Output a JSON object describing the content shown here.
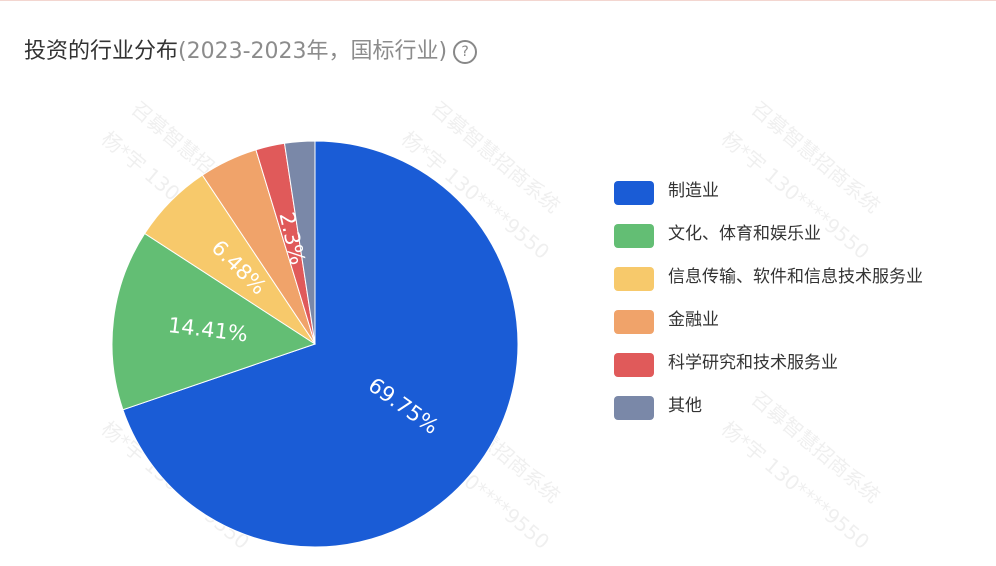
{
  "chart_data": {
    "type": "pie",
    "title": "投资的行业分布",
    "subtitle": "(2023-2023年，国标行业)",
    "categories": [
      "制造业",
      "文化、体育和娱乐业",
      "信息传输、软件和信息技术服务业",
      "金融业",
      "科学研究和技术服务业",
      "其他"
    ],
    "values": [
      69.75,
      14.41,
      6.48,
      4.66,
      2.3,
      2.4
    ],
    "value_labels": [
      "69.75%",
      "14.41%",
      "6.48%",
      null,
      "2.3%",
      null
    ],
    "colors": [
      "#1a5cd6",
      "#63be74",
      "#f7c96b",
      "#f0a36a",
      "#e05a5a",
      "#7a88a8"
    ],
    "legend": "right",
    "watermark": [
      "召募智慧招商系统",
      "杨*宇 130****9550"
    ]
  }
}
